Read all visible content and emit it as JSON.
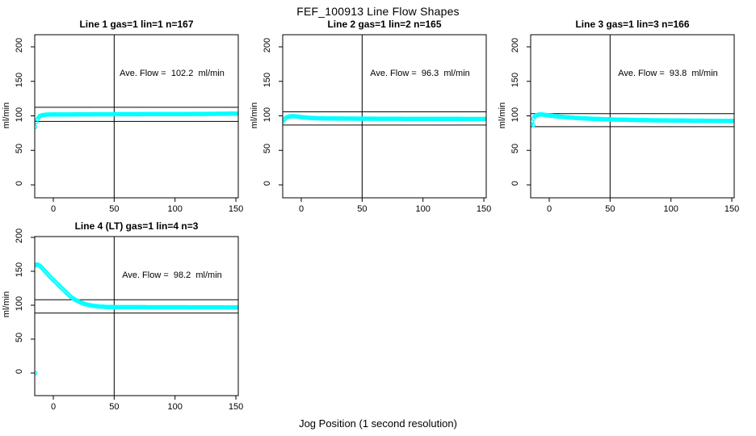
{
  "page": {
    "title": "FEF_100913  Line Flow Shapes",
    "xlabel": "Jog Position (1 second resolution)"
  },
  "colors": {
    "marker": "#00FFFF",
    "axis": "#000000",
    "background": "#FFFFFF",
    "text": "#000000"
  },
  "chart_data": [
    {
      "type": "scatter",
      "title": "Line 1 gas=1 lin=1 n=167",
      "annotation": "Ave. Flow =  102.2  ml/min",
      "ave_flow_ml_min": 102.2,
      "n_points": 167,
      "ylabel": "ml/min",
      "x_ticks": [
        "0",
        "50",
        "100",
        "150"
      ],
      "x_tick_values": [
        0,
        50,
        100,
        150
      ],
      "y_ticks": [
        "0",
        "50",
        "100",
        "150",
        "200"
      ],
      "y_tick_values": [
        0,
        50,
        100,
        150,
        200
      ],
      "vline_x": 50,
      "hlines": [
        112.4,
        92.0
      ],
      "marker": "open-circle",
      "keypoints": [
        [
          -15,
          84
        ],
        [
          -14,
          91
        ],
        [
          -13,
          95
        ],
        [
          -12,
          98
        ],
        [
          -11,
          100
        ],
        [
          -9,
          101
        ],
        [
          -6,
          101.8
        ],
        [
          0,
          102
        ],
        [
          20,
          102.2
        ],
        [
          50,
          102.4
        ],
        [
          90,
          102.6
        ],
        [
          120,
          102.8
        ],
        [
          152,
          103.2
        ]
      ],
      "outliers": []
    },
    {
      "type": "scatter",
      "title": "Line 2 gas=1 lin=2 n=165",
      "annotation": "Ave. Flow =  96.3  ml/min",
      "ave_flow_ml_min": 96.3,
      "n_points": 165,
      "ylabel": "ml/min",
      "x_ticks": [
        "0",
        "50",
        "100",
        "150"
      ],
      "x_tick_values": [
        0,
        50,
        100,
        150
      ],
      "y_ticks": [
        "0",
        "50",
        "100",
        "150",
        "200"
      ],
      "y_tick_values": [
        0,
        50,
        100,
        150,
        200
      ],
      "vline_x": 50,
      "hlines": [
        105.9,
        86.7
      ],
      "marker": "open-circle",
      "keypoints": [
        [
          -15,
          92.5
        ],
        [
          -14,
          95
        ],
        [
          -13,
          96.5
        ],
        [
          -12,
          97.8
        ],
        [
          -10,
          99
        ],
        [
          -7,
          99.6
        ],
        [
          -4,
          99.2
        ],
        [
          0,
          98.2
        ],
        [
          6,
          97.2
        ],
        [
          12,
          96.6
        ],
        [
          25,
          96.2
        ],
        [
          50,
          95.9
        ],
        [
          90,
          95.7
        ],
        [
          152,
          95.4
        ]
      ],
      "outliers": []
    },
    {
      "type": "scatter",
      "title": "Line 3 gas=1 lin=3 n=166",
      "annotation": "Ave. Flow =  93.8  ml/min",
      "ave_flow_ml_min": 93.8,
      "n_points": 166,
      "ylabel": "ml/min",
      "x_ticks": [
        "0",
        "50",
        "100",
        "150"
      ],
      "x_tick_values": [
        0,
        50,
        100,
        150
      ],
      "y_ticks": [
        "0",
        "50",
        "100",
        "150",
        "200"
      ],
      "y_tick_values": [
        0,
        50,
        100,
        150,
        200
      ],
      "vline_x": 50,
      "hlines": [
        103.2,
        84.4
      ],
      "marker": "open-circle",
      "keypoints": [
        [
          -15,
          88
        ],
        [
          -14,
          92
        ],
        [
          -13,
          96
        ],
        [
          -12,
          99
        ],
        [
          -11,
          100.5
        ],
        [
          -9,
          101.8
        ],
        [
          -6,
          102
        ],
        [
          -2,
          101
        ],
        [
          3,
          100
        ],
        [
          10,
          98.6
        ],
        [
          20,
          97.2
        ],
        [
          35,
          95.8
        ],
        [
          55,
          94.6
        ],
        [
          85,
          93.6
        ],
        [
          120,
          93
        ],
        [
          152,
          92.6
        ]
      ],
      "outliers": [
        [
          -13,
          86.5
        ]
      ]
    },
    {
      "type": "scatter",
      "title": "Line 4 (LT) gas=1 lin=4 n=3",
      "annotation": "Ave. Flow =  98.2  ml/min",
      "ave_flow_ml_min": 98.2,
      "n_points": 3,
      "ylabel": "ml/min",
      "x_ticks": [
        "0",
        "50",
        "100",
        "150"
      ],
      "x_tick_values": [
        0,
        50,
        100,
        150
      ],
      "y_ticks": [
        "0",
        "50",
        "100",
        "150",
        "200"
      ],
      "y_tick_values": [
        0,
        50,
        100,
        150,
        200
      ],
      "vline_x": 50,
      "hlines": [
        108.0,
        88.4
      ],
      "marker": "open-circle",
      "keypoints": [
        [
          -15,
          159
        ],
        [
          -13,
          160
        ],
        [
          -11,
          158
        ],
        [
          -9,
          154.5
        ],
        [
          -7,
          150.5
        ],
        [
          -5,
          146.5
        ],
        [
          -3,
          142.5
        ],
        [
          -1,
          139
        ],
        [
          1,
          135.5
        ],
        [
          3,
          132
        ],
        [
          5,
          128.5
        ],
        [
          7,
          125
        ],
        [
          9,
          121.5
        ],
        [
          11,
          118
        ],
        [
          13,
          114.5
        ],
        [
          15,
          111.5
        ],
        [
          18,
          108
        ],
        [
          21,
          105.2
        ],
        [
          24,
          103
        ],
        [
          27,
          101.2
        ],
        [
          30,
          100
        ],
        [
          34,
          98.8
        ],
        [
          38,
          98
        ],
        [
          43,
          97.5
        ],
        [
          50,
          97.2
        ],
        [
          70,
          97.1
        ],
        [
          100,
          97
        ],
        [
          152,
          96.8
        ]
      ],
      "outliers": [
        [
          -15,
          0
        ]
      ]
    }
  ]
}
